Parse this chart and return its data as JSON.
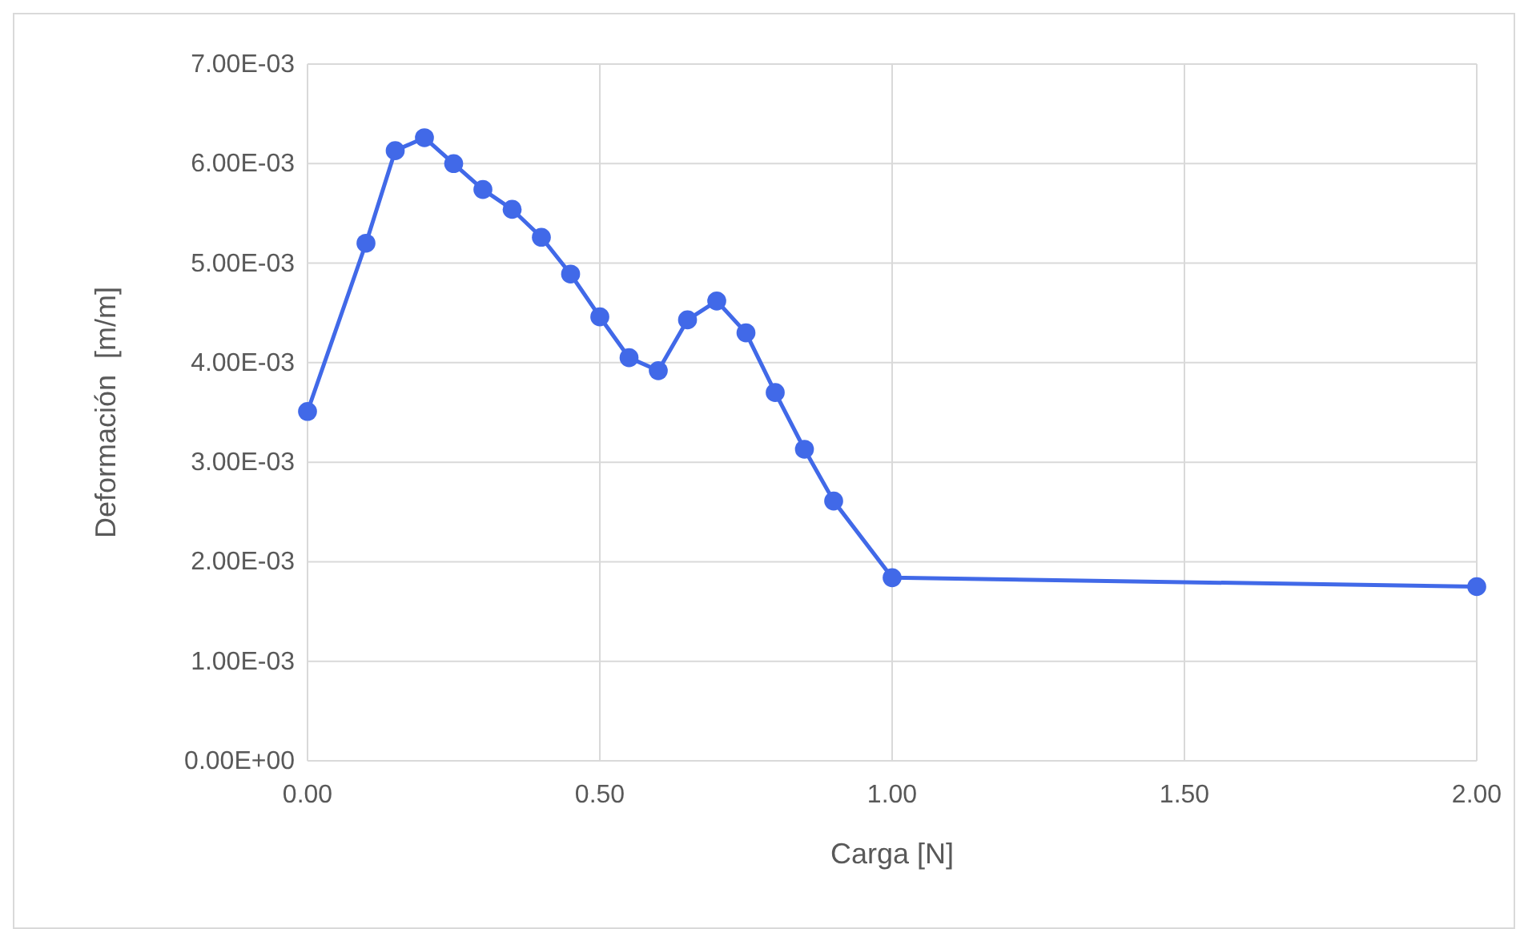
{
  "chart_data": {
    "type": "line",
    "xlabel": "Carga [N]",
    "ylabel": "Deformación  [m/m]",
    "x": [
      0,
      0.1,
      0.15,
      0.2,
      0.25,
      0.3,
      0.35,
      0.4,
      0.45,
      0.5,
      0.55,
      0.6,
      0.65,
      0.7,
      0.75,
      0.8,
      0.85,
      0.9,
      1.0,
      2.0
    ],
    "series": [
      {
        "color": "#4169e8",
        "values": [
          0.00351,
          0.0052,
          0.00613,
          0.00626,
          0.006,
          0.00574,
          0.00554,
          0.00526,
          0.00489,
          0.00446,
          0.00405,
          0.00392,
          0.00443,
          0.00462,
          0.0043,
          0.0037,
          0.00313,
          0.00261,
          0.00184,
          0.00175
        ]
      }
    ],
    "xlim": [
      0,
      2
    ],
    "xticks": [
      {
        "value": 0,
        "label": "0.00"
      },
      {
        "value": 0.5,
        "label": "0.50"
      },
      {
        "value": 1,
        "label": "1.00"
      },
      {
        "value": 1.5,
        "label": "1.50"
      },
      {
        "value": 2,
        "label": "2.00"
      }
    ],
    "ylim": [
      0,
      0.007
    ],
    "yticks": [
      {
        "value": 0,
        "label": "0.00E+00"
      },
      {
        "value": 0.001,
        "label": "1.00E-03"
      },
      {
        "value": 0.002,
        "label": "2.00E-03"
      },
      {
        "value": 0.003,
        "label": "3.00E-03"
      },
      {
        "value": 0.004,
        "label": "4.00E-03"
      },
      {
        "value": 0.005,
        "label": "5.00E-03"
      },
      {
        "value": 0.006,
        "label": "6.00E-03"
      },
      {
        "value": 0.007,
        "label": "7.00E-03"
      }
    ],
    "grid": true,
    "marker": "circle",
    "line_style": "solid"
  }
}
